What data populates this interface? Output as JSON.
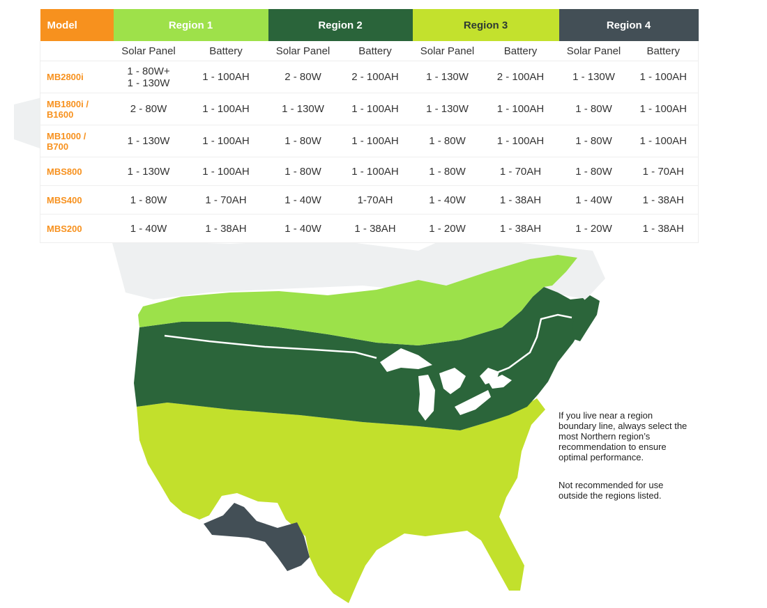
{
  "table": {
    "model_header": "Model",
    "regions": [
      {
        "label": "Region 1",
        "color": "#9ee14a"
      },
      {
        "label": "Region 2",
        "color": "#2a643a"
      },
      {
        "label": "Region 3",
        "color": "#c3e12d"
      },
      {
        "label": "Region 4",
        "color": "#434f56"
      }
    ],
    "sub_headers": [
      "Solar Panel",
      "Battery",
      "Solar Panel",
      "Battery",
      "Solar Panel",
      "Battery",
      "Solar Panel",
      "Battery"
    ],
    "rows": [
      {
        "model": [
          "MB2800i"
        ],
        "cells": [
          [
            "1 - 80W+",
            "1 - 130W"
          ],
          [
            "1 - 100AH"
          ],
          [
            "2 - 80W"
          ],
          [
            "2 - 100AH"
          ],
          [
            "1 - 130W"
          ],
          [
            "2 - 100AH"
          ],
          [
            "1 - 130W"
          ],
          [
            "1 - 100AH"
          ]
        ]
      },
      {
        "model": [
          "MB1800i /",
          "B1600"
        ],
        "cells": [
          [
            "2 - 80W"
          ],
          [
            "1 - 100AH"
          ],
          [
            "1 - 130W"
          ],
          [
            "1 - 100AH"
          ],
          [
            "1 - 130W"
          ],
          [
            "1 - 100AH"
          ],
          [
            "1 - 80W"
          ],
          [
            "1 - 100AH"
          ]
        ]
      },
      {
        "model": [
          "MB1000 /",
          "B700"
        ],
        "cells": [
          [
            "1 - 130W"
          ],
          [
            "1 - 100AH"
          ],
          [
            "1 - 80W"
          ],
          [
            "1 - 100AH"
          ],
          [
            "1 - 80W"
          ],
          [
            "1 - 100AH"
          ],
          [
            "1 - 80W"
          ],
          [
            "1 - 100AH"
          ]
        ]
      },
      {
        "model": [
          "MBS800"
        ],
        "cells": [
          [
            "1 - 130W"
          ],
          [
            "1 - 100AH"
          ],
          [
            "1 - 80W"
          ],
          [
            "1 - 100AH"
          ],
          [
            "1 - 80W"
          ],
          [
            "1 - 70AH"
          ],
          [
            "1 - 80W"
          ],
          [
            "1 - 70AH"
          ]
        ]
      },
      {
        "model": [
          "MBS400"
        ],
        "cells": [
          [
            "1 - 80W"
          ],
          [
            "1 - 70AH"
          ],
          [
            "1 - 40W"
          ],
          [
            "1-70AH"
          ],
          [
            "1 - 40W"
          ],
          [
            "1 - 38AH"
          ],
          [
            "1 - 40W"
          ],
          [
            "1 - 38AH"
          ]
        ]
      },
      {
        "model": [
          "MBS200"
        ],
        "cells": [
          [
            "1 - 40W"
          ],
          [
            "1 - 38AH"
          ],
          [
            "1 - 40W"
          ],
          [
            "1 - 38AH"
          ],
          [
            "1 - 20W"
          ],
          [
            "1 - 38AH"
          ],
          [
            "1 - 20W"
          ],
          [
            "1 - 38AH"
          ]
        ]
      }
    ],
    "model_color": "#f7911e"
  },
  "map": {
    "regions_shown": [
      "Region 1",
      "Region 2",
      "Region 3",
      "Region 4"
    ],
    "land_color": "#f0f1f2",
    "lake_color": "#ffffff"
  },
  "notes": {
    "boundary": "If you live near a region boundary line, always select the most Northern region’s recommendation to ensure optimal performance.",
    "outside": "Not recommended for use outside the regions listed."
  }
}
